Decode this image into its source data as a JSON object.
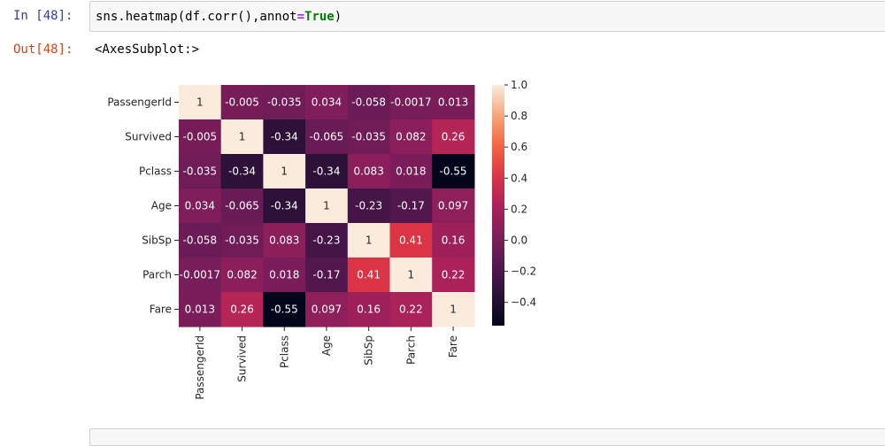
{
  "input_prompt": "In [48]:",
  "output_prompt": "Out[48]:",
  "code": {
    "part1": "sns.heatmap(df.corr(),annot",
    "op": "=",
    "kw": "True",
    "part2": ")"
  },
  "output_text": "<AxesSubplot:>",
  "chart_data": {
    "type": "heatmap",
    "rows": [
      "PassengerId",
      "Survived",
      "Pclass",
      "Age",
      "SibSp",
      "Parch",
      "Fare"
    ],
    "columns": [
      "PassengerId",
      "Survived",
      "Pclass",
      "Age",
      "SibSp",
      "Parch",
      "Fare"
    ],
    "values": [
      [
        1,
        -0.005,
        -0.035,
        0.034,
        -0.058,
        -0.0017,
        0.013
      ],
      [
        -0.005,
        1,
        -0.34,
        -0.065,
        -0.035,
        0.082,
        0.26
      ],
      [
        -0.035,
        -0.34,
        1,
        -0.34,
        0.083,
        0.018,
        -0.55
      ],
      [
        0.034,
        -0.065,
        -0.34,
        1,
        -0.23,
        -0.17,
        0.097
      ],
      [
        -0.058,
        -0.035,
        0.083,
        -0.23,
        1,
        0.41,
        0.16
      ],
      [
        -0.0017,
        0.082,
        0.018,
        -0.17,
        0.41,
        1,
        0.22
      ],
      [
        0.013,
        0.26,
        -0.55,
        0.097,
        0.16,
        0.22,
        1
      ]
    ],
    "labels": [
      [
        "1",
        "-0.005",
        "-0.035",
        "0.034",
        "-0.058",
        "-0.0017",
        "0.013"
      ],
      [
        "-0.005",
        "1",
        "-0.34",
        "-0.065",
        "-0.035",
        "0.082",
        "0.26"
      ],
      [
        "-0.035",
        "-0.34",
        "1",
        "-0.34",
        "0.083",
        "0.018",
        "-0.55"
      ],
      [
        "0.034",
        "-0.065",
        "-0.34",
        "1",
        "-0.23",
        "-0.17",
        "0.097"
      ],
      [
        "-0.058",
        "-0.035",
        "0.083",
        "-0.23",
        "1",
        "0.41",
        "0.16"
      ],
      [
        "-0.0017",
        "0.082",
        "0.018",
        "-0.17",
        "0.41",
        "1",
        "0.22"
      ],
      [
        "0.013",
        "0.26",
        "-0.55",
        "0.097",
        "0.16",
        "0.22",
        "1"
      ]
    ],
    "colorbar": {
      "min": -0.55,
      "max": 1.0,
      "ticks": [
        1.0,
        0.8,
        0.6,
        0.4,
        0.2,
        0.0,
        -0.2,
        -0.4
      ],
      "tick_labels": [
        "1.0",
        "0.8",
        "0.6",
        "0.4",
        "0.2",
        "0.0",
        "−0.2",
        "−0.4"
      ]
    },
    "colormap": "rocket",
    "annot": true
  }
}
